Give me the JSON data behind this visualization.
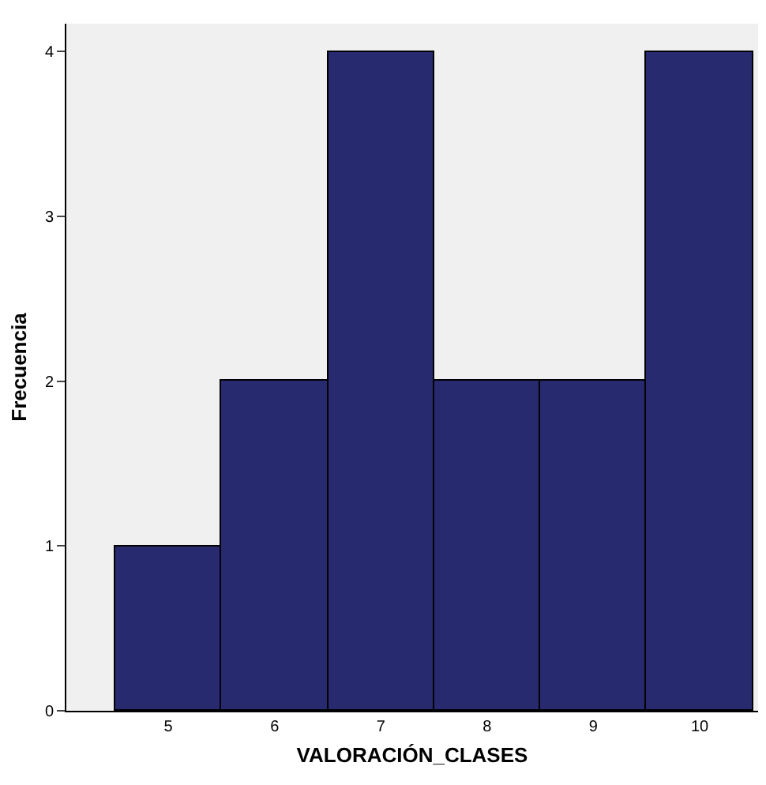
{
  "chart_data": {
    "type": "histogram",
    "xlabel": "VALORACIÓN_CLASES",
    "ylabel": "Frecuencia",
    "bins": [
      4.5,
      5.5,
      6.5,
      7.5,
      8.5,
      9.5,
      10.5
    ],
    "values": [
      1,
      2,
      4,
      2,
      2,
      4
    ],
    "color": "#272a6e",
    "xlim": [
      4.04,
      10.55
    ],
    "xticks": [
      5,
      6,
      7,
      8,
      9,
      10
    ],
    "ylim": [
      0,
      4.17
    ],
    "yticks": [
      0,
      1,
      2,
      3,
      4
    ],
    "grid": false
  }
}
